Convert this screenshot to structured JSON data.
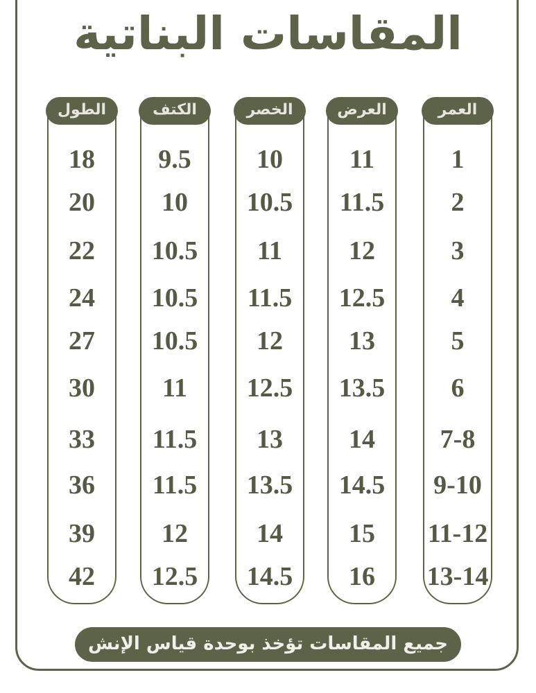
{
  "title": "المقاسات البناتية",
  "columns": [
    {
      "header": "الطول",
      "values": [
        "18",
        "20",
        "22",
        "24",
        "27",
        "30",
        "33",
        "36",
        "39",
        "42"
      ]
    },
    {
      "header": "الكتف",
      "values": [
        "9.5",
        "10",
        "10.5",
        "10.5",
        "10.5",
        "11",
        "11.5",
        "11.5",
        "12",
        "12.5"
      ]
    },
    {
      "header": "الخصر",
      "values": [
        "10",
        "10.5",
        "11",
        "11.5",
        "12",
        "12.5",
        "13",
        "13.5",
        "14",
        "14.5"
      ]
    },
    {
      "header": "العرض",
      "values": [
        "11",
        "11.5",
        "12",
        "12.5",
        "13",
        "13.5",
        "14",
        "14.5",
        "15",
        "16"
      ]
    },
    {
      "header": "العمر",
      "values": [
        "1",
        "2",
        "3",
        "4",
        "5",
        "6",
        "7-8",
        "9-10",
        "11-12",
        "13-14"
      ]
    }
  ],
  "footer": "جميع المقاسات تؤخذ بوحدة قياس الإنش",
  "colors": {
    "accent": "#5d6349",
    "text": "#545a45"
  }
}
